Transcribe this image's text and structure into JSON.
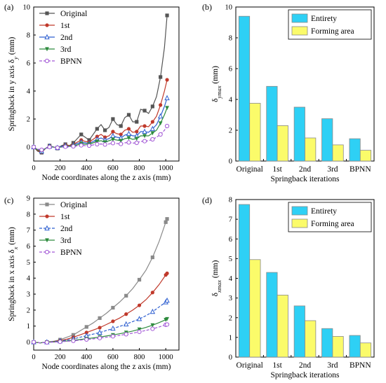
{
  "chart_data": [
    {
      "panel": "(a)",
      "type": "line",
      "xlabel": "Node coordinates along the z axis (mm)",
      "ylabel": "Springback in y axis δy (mm)",
      "xlim": [
        0,
        1100
      ],
      "ylim": [
        -1,
        10
      ],
      "xticks": [
        0,
        200,
        400,
        600,
        800,
        1000
      ],
      "yticks": [
        0,
        2,
        4,
        6,
        8,
        10
      ],
      "legend_position": "top-left",
      "series": [
        {
          "name": "Original",
          "color": "#555555",
          "marker": "square",
          "x": [
            0,
            30,
            60,
            90,
            120,
            150,
            180,
            210,
            240,
            270,
            300,
            330,
            360,
            390,
            420,
            450,
            480,
            510,
            540,
            570,
            600,
            630,
            660,
            690,
            720,
            750,
            780,
            810,
            840,
            870,
            900,
            930,
            960,
            990,
            1010
          ],
          "y": [
            0,
            -0.3,
            -0.4,
            -0.1,
            0.1,
            0,
            -0.1,
            0.1,
            0.2,
            0.1,
            0.3,
            0.6,
            0.9,
            0.7,
            0.5,
            0.9,
            1.3,
            1.6,
            1.2,
            1.4,
            2.0,
            1.6,
            1.5,
            2.1,
            2.3,
            1.8,
            1.8,
            2.7,
            2.6,
            2.4,
            2.9,
            3.6,
            5.0,
            7.1,
            9.4
          ]
        },
        {
          "name": "1st",
          "color": "#c0392b",
          "marker": "circle",
          "x": [
            0,
            30,
            60,
            90,
            120,
            150,
            180,
            210,
            240,
            270,
            300,
            330,
            360,
            390,
            420,
            450,
            480,
            510,
            540,
            570,
            600,
            630,
            660,
            690,
            720,
            750,
            780,
            810,
            840,
            870,
            900,
            930,
            960,
            990,
            1010
          ],
          "y": [
            0,
            -0.25,
            -0.35,
            -0.1,
            0.05,
            0,
            -0.05,
            0.05,
            0.15,
            0.1,
            0.2,
            0.35,
            0.5,
            0.4,
            0.35,
            0.55,
            0.75,
            0.9,
            0.7,
            0.8,
            1.1,
            0.95,
            0.9,
            1.2,
            1.3,
            1.05,
            1.1,
            1.5,
            1.5,
            1.45,
            1.8,
            2.2,
            3.0,
            4.0,
            4.8
          ]
        },
        {
          "name": "2nd",
          "color": "#2e5fd0",
          "marker": "triangle-up",
          "x": [
            0,
            30,
            60,
            90,
            120,
            150,
            180,
            210,
            240,
            270,
            300,
            330,
            360,
            390,
            420,
            450,
            480,
            510,
            540,
            570,
            600,
            630,
            660,
            690,
            720,
            750,
            780,
            810,
            840,
            870,
            900,
            930,
            960,
            990,
            1010
          ],
          "y": [
            0,
            -0.2,
            -0.3,
            -0.1,
            0.05,
            0,
            -0.05,
            0.05,
            0.1,
            0.05,
            0.15,
            0.25,
            0.35,
            0.3,
            0.25,
            0.4,
            0.55,
            0.65,
            0.5,
            0.6,
            0.8,
            0.7,
            0.65,
            0.85,
            0.95,
            0.8,
            0.8,
            1.1,
            1.1,
            1.05,
            1.3,
            1.6,
            2.2,
            2.9,
            3.5
          ]
        },
        {
          "name": "3rd",
          "color": "#2e8b3e",
          "marker": "triangle-down",
          "x": [
            0,
            30,
            60,
            90,
            120,
            150,
            180,
            210,
            240,
            270,
            300,
            330,
            360,
            390,
            420,
            450,
            480,
            510,
            540,
            570,
            600,
            630,
            660,
            690,
            720,
            750,
            780,
            810,
            840,
            870,
            900,
            930,
            960,
            990,
            1010
          ],
          "y": [
            0,
            -0.2,
            -0.25,
            -0.1,
            0,
            0,
            -0.05,
            0,
            0.05,
            0.05,
            0.1,
            0.15,
            0.25,
            0.2,
            0.2,
            0.3,
            0.4,
            0.45,
            0.35,
            0.45,
            0.55,
            0.5,
            0.45,
            0.6,
            0.65,
            0.55,
            0.6,
            0.8,
            0.8,
            0.8,
            1.0,
            1.2,
            1.7,
            2.3,
            2.8
          ]
        },
        {
          "name": "BPNN",
          "color": "#a257d6",
          "marker": "circle-open",
          "dashed": true,
          "x": [
            0,
            30,
            60,
            90,
            120,
            150,
            180,
            210,
            240,
            270,
            300,
            330,
            360,
            390,
            420,
            450,
            480,
            510,
            540,
            570,
            600,
            630,
            660,
            690,
            720,
            750,
            780,
            810,
            840,
            870,
            900,
            930,
            960,
            990,
            1010
          ],
          "y": [
            0,
            -0.15,
            -0.2,
            -0.1,
            0,
            0,
            -0.05,
            0,
            0.02,
            0.02,
            0.05,
            0.08,
            0.12,
            0.1,
            0.1,
            0.15,
            0.2,
            0.22,
            0.18,
            0.22,
            0.28,
            0.25,
            0.22,
            0.3,
            0.33,
            0.28,
            0.3,
            0.4,
            0.42,
            0.45,
            0.55,
            0.7,
            0.9,
            1.2,
            1.5
          ]
        }
      ]
    },
    {
      "panel": "(b)",
      "type": "bar",
      "xlabel": "Springback iterations",
      "ylabel": "δymax (mm)",
      "ylim": [
        0,
        10
      ],
      "yticks": [
        0,
        2,
        4,
        6,
        8,
        10
      ],
      "categories": [
        "Original",
        "1st",
        "2nd",
        "3rd",
        "BPNN"
      ],
      "legend_position": "top-right",
      "series": [
        {
          "name": "Entirety",
          "color": "#2ed0f5",
          "values": [
            9.4,
            4.85,
            3.5,
            2.75,
            1.45
          ]
        },
        {
          "name": "Forming area",
          "color": "#fbfb6a",
          "values": [
            3.75,
            2.3,
            1.5,
            1.05,
            0.7
          ]
        }
      ]
    },
    {
      "panel": "(c)",
      "type": "line",
      "xlabel": "Node coordinates along the z axis (mm)",
      "ylabel": "Springback in x axis δx (mm)",
      "xlim": [
        0,
        1100
      ],
      "ylim": [
        -0.5,
        9
      ],
      "xticks": [
        0,
        200,
        400,
        600,
        800,
        1000
      ],
      "yticks": [
        0,
        1,
        2,
        3,
        4,
        5,
        6,
        7,
        8,
        9
      ],
      "legend_position": "top-left",
      "series": [
        {
          "name": "Original",
          "color": "#8a8a8a",
          "marker": "square",
          "x": [
            0,
            50,
            100,
            150,
            200,
            250,
            300,
            350,
            400,
            450,
            500,
            550,
            600,
            650,
            700,
            750,
            800,
            850,
            900,
            950,
            1000,
            1010
          ],
          "y": [
            0,
            -0.05,
            0,
            0.05,
            0.15,
            0.3,
            0.45,
            0.7,
            0.95,
            1.2,
            1.5,
            1.8,
            2.15,
            2.5,
            2.9,
            3.35,
            3.9,
            4.5,
            5.3,
            6.3,
            7.5,
            7.7
          ]
        },
        {
          "name": "1st",
          "color": "#c0392b",
          "marker": "circle",
          "x": [
            0,
            50,
            100,
            150,
            200,
            250,
            300,
            350,
            400,
            450,
            500,
            550,
            600,
            650,
            700,
            750,
            800,
            850,
            900,
            950,
            1000,
            1010
          ],
          "y": [
            0,
            -0.05,
            0,
            0.03,
            0.1,
            0.18,
            0.3,
            0.45,
            0.6,
            0.75,
            0.9,
            1.1,
            1.3,
            1.5,
            1.75,
            2.0,
            2.3,
            2.65,
            3.1,
            3.6,
            4.2,
            4.3
          ]
        },
        {
          "name": "2nd",
          "color": "#2e5fd0",
          "marker": "triangle-up",
          "dashed": true,
          "x": [
            0,
            50,
            100,
            150,
            200,
            250,
            300,
            350,
            400,
            450,
            500,
            550,
            600,
            650,
            700,
            750,
            800,
            850,
            900,
            950,
            1000,
            1010
          ],
          "y": [
            0,
            -0.05,
            0,
            0.02,
            0.07,
            0.12,
            0.2,
            0.3,
            0.4,
            0.5,
            0.6,
            0.72,
            0.85,
            0.98,
            1.12,
            1.28,
            1.45,
            1.65,
            1.9,
            2.2,
            2.5,
            2.6
          ]
        },
        {
          "name": "3rd",
          "color": "#2e8b3e",
          "marker": "triangle-down",
          "x": [
            0,
            50,
            100,
            150,
            200,
            250,
            300,
            350,
            400,
            450,
            500,
            550,
            600,
            650,
            700,
            750,
            800,
            850,
            900,
            950,
            1000,
            1010
          ],
          "y": [
            0,
            -0.05,
            0,
            0.01,
            0.04,
            0.07,
            0.11,
            0.16,
            0.21,
            0.26,
            0.32,
            0.38,
            0.45,
            0.52,
            0.6,
            0.69,
            0.8,
            0.92,
            1.06,
            1.22,
            1.4,
            1.45
          ]
        },
        {
          "name": "BPNN",
          "color": "#a257d6",
          "marker": "circle-open",
          "dashed": true,
          "x": [
            0,
            50,
            100,
            150,
            200,
            250,
            300,
            350,
            400,
            450,
            500,
            550,
            600,
            650,
            700,
            750,
            800,
            850,
            900,
            950,
            1000,
            1010
          ],
          "y": [
            0,
            -0.05,
            -0.02,
            0,
            0.02,
            0.05,
            0.08,
            0.12,
            0.16,
            0.2,
            0.25,
            0.3,
            0.36,
            0.42,
            0.49,
            0.56,
            0.64,
            0.73,
            0.83,
            0.95,
            1.08,
            1.1
          ]
        }
      ]
    },
    {
      "panel": "(d)",
      "type": "bar",
      "xlabel": "Springback iterations",
      "ylabel": "δxmax (mm)",
      "ylim": [
        0,
        8
      ],
      "yticks": [
        0,
        1,
        2,
        3,
        4,
        5,
        6,
        7,
        8
      ],
      "categories": [
        "Original",
        "1st",
        "2nd",
        "3rd",
        "BPNN"
      ],
      "legend_position": "top-right",
      "series": [
        {
          "name": "Entirety",
          "color": "#2ed0f5",
          "values": [
            7.75,
            4.3,
            2.6,
            1.45,
            1.1
          ]
        },
        {
          "name": "Forming area",
          "color": "#fbfb6a",
          "values": [
            4.95,
            3.15,
            1.85,
            1.05,
            0.72
          ]
        }
      ]
    }
  ]
}
